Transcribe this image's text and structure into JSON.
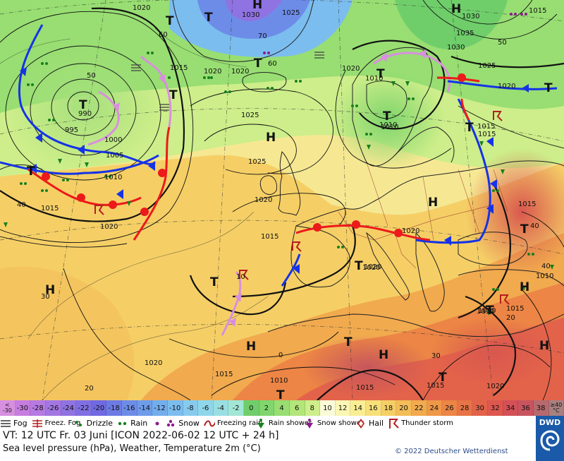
{
  "temperature_scale": [
    {
      "label": "< -30",
      "color": "#d78fe0"
    },
    {
      "label": "-30",
      "color": "#c77de0"
    },
    {
      "label": "-28",
      "color": "#b77ae2"
    },
    {
      "label": "-26",
      "color": "#a277e3"
    },
    {
      "label": "-24",
      "color": "#9073e2"
    },
    {
      "label": "-22",
      "color": "#7f6fe2"
    },
    {
      "label": "-20",
      "color": "#6f6ae1"
    },
    {
      "label": "-18",
      "color": "#6c7be4"
    },
    {
      "label": "-16",
      "color": "#6d8ce8"
    },
    {
      "label": "-14",
      "color": "#6e9cea"
    },
    {
      "label": "-12",
      "color": "#72aded"
    },
    {
      "label": "-10",
      "color": "#7cbdef"
    },
    {
      "label": "-8",
      "color": "#86cbee"
    },
    {
      "label": "-6",
      "color": "#90d6ea"
    },
    {
      "label": "-4",
      "color": "#99dfe2"
    },
    {
      "label": "-2",
      "color": "#a2e6d6"
    },
    {
      "label": "0",
      "color": "#6fce6a"
    },
    {
      "label": "2",
      "color": "#80d66c"
    },
    {
      "label": "4",
      "color": "#98de72"
    },
    {
      "label": "6",
      "color": "#b2e67a"
    },
    {
      "label": "8",
      "color": "#cdee8a"
    },
    {
      "label": "10",
      "color": "#fbfbd8"
    },
    {
      "label": "12",
      "color": "#fbf6b4"
    },
    {
      "label": "14",
      "color": "#f9ee94"
    },
    {
      "label": "16",
      "color": "#f7e07a"
    },
    {
      "label": "18",
      "color": "#f5cf66"
    },
    {
      "label": "20",
      "color": "#f3bd58"
    },
    {
      "label": "22",
      "color": "#f1aa4e"
    },
    {
      "label": "24",
      "color": "#ef9848"
    },
    {
      "label": "26",
      "color": "#ec8545"
    },
    {
      "label": "28",
      "color": "#e87446"
    },
    {
      "label": "30",
      "color": "#e3634a"
    },
    {
      "label": "32",
      "color": "#dd574f"
    },
    {
      "label": "34",
      "color": "#d45057"
    },
    {
      "label": "36",
      "color": "#c8545f"
    },
    {
      "label": "38",
      "color": "#b66a6e"
    },
    {
      "label": "≥40 °C",
      "color": "#a88080"
    }
  ],
  "symbols_legend": {
    "fog": "Fog",
    "freezing_fog": "Freez. Fog",
    "drizzle": "Drizzle",
    "rain": "Rain",
    "snow": "Snow",
    "freezing_rain": "Freezing rain",
    "rain_shower": "Rain shower",
    "snow_shower": "Snow shower",
    "hail": "Hail",
    "thunderstorm": "Thunder storm"
  },
  "info": {
    "valid_time": "VT: 12 UTC Fr.  03 Juni [ICON 2022-06-02  12 UTC + 24 h]",
    "description": "Sea level pressure (hPa), Weather, Temperature 2m (°C)",
    "copyright": "© 2022 Deutscher Wetterdienst",
    "logo": "DWD"
  },
  "map": {
    "pressure_systems": [
      {
        "type": "T",
        "label": "T",
        "value": "990"
      },
      {
        "type": "H",
        "label": "H",
        "value": "1030"
      },
      {
        "type": "H",
        "label": "H",
        "value": "1035"
      },
      {
        "type": "H",
        "label": "H"
      },
      {
        "type": "T",
        "label": "T",
        "value": "1010"
      },
      {
        "type": "T",
        "label": "T",
        "value": "1015"
      },
      {
        "type": "H",
        "label": "H"
      },
      {
        "type": "T",
        "label": "T",
        "value": "1020"
      },
      {
        "type": "H",
        "label": "H"
      },
      {
        "type": "T",
        "label": "T",
        "value": "1010"
      },
      {
        "type": "T",
        "label": "T",
        "value": "1010"
      },
      {
        "type": "H",
        "label": "H"
      },
      {
        "type": "H",
        "label": "H"
      },
      {
        "type": "H",
        "label": "H"
      },
      {
        "type": "H",
        "label": "H"
      },
      {
        "type": "T",
        "label": "T"
      },
      {
        "type": "T",
        "label": "T"
      },
      {
        "type": "T",
        "label": "T"
      },
      {
        "type": "T",
        "label": "T"
      },
      {
        "type": "T",
        "label": "T"
      },
      {
        "type": "T",
        "label": "T"
      },
      {
        "type": "T",
        "label": "T"
      },
      {
        "type": "T",
        "label": "T"
      },
      {
        "type": "T",
        "label": "T"
      },
      {
        "type": "T",
        "label": "T"
      },
      {
        "type": "T",
        "label": "T"
      },
      {
        "type": "T",
        "label": "T"
      }
    ],
    "isobar_labels": [
      "1020",
      "1020",
      "1025",
      "1030",
      "1025",
      "1015",
      "1020",
      "1020",
      "1020",
      "1025",
      "1015",
      "1020",
      "1025",
      "1020",
      "1030",
      "1020",
      "1015",
      "1000",
      "995",
      "1005",
      "1010",
      "1015",
      "1010",
      "1015",
      "1015",
      "1015",
      "1020",
      "1010",
      "1015",
      "1020",
      "1010",
      "1010",
      "1015",
      "1010",
      "1015",
      "1020"
    ],
    "temperature_labels": [
      "50",
      "40",
      "60",
      "70",
      "60",
      "50",
      "30",
      "40",
      "20",
      "30",
      "20",
      "0",
      "10",
      "40"
    ]
  },
  "colors": {
    "cold_front": "#1533e6",
    "warm_front": "#ec1a1a",
    "occlusion": "#d98fe0",
    "isobar": "#111111",
    "logo_bg": "#1a5aa8"
  }
}
